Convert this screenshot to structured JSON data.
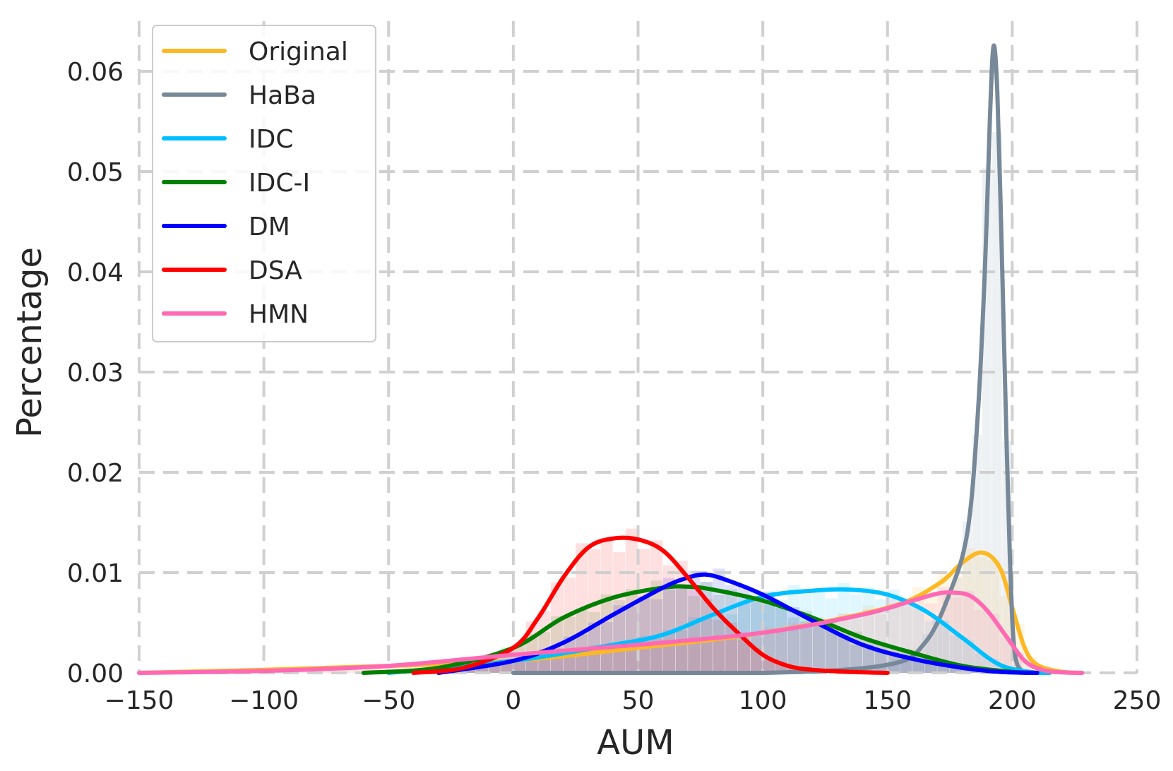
{
  "chart_data": {
    "type": "area",
    "xlabel": "AUM",
    "ylabel": "Percentage",
    "xlim": [
      -150,
      250
    ],
    "ylim": [
      0,
      0.065
    ],
    "x_ticks": [
      -150,
      -100,
      -50,
      0,
      50,
      100,
      150,
      200,
      250
    ],
    "x_tick_labels": [
      "−150",
      "−100",
      "−50",
      "0",
      "50",
      "100",
      "150",
      "200",
      "250"
    ],
    "y_ticks": [
      0,
      0.01,
      0.02,
      0.03,
      0.04,
      0.05,
      0.06
    ],
    "y_tick_labels": [
      "0.00",
      "0.01",
      "0.02",
      "0.03",
      "0.04",
      "0.05",
      "0.06"
    ],
    "grid": true,
    "legend_position": "top-left",
    "series": [
      {
        "name": "Original",
        "color": "#FDB924",
        "x": [
          -150,
          -100,
          -50,
          0,
          50,
          100,
          150,
          170,
          180,
          188,
          195,
          200,
          205,
          210,
          220,
          228
        ],
        "y": [
          0.0,
          0.0003,
          0.0007,
          0.0012,
          0.0025,
          0.004,
          0.0065,
          0.0088,
          0.011,
          0.012,
          0.0105,
          0.0065,
          0.0025,
          0.0008,
          0.0001,
          0.0
        ]
      },
      {
        "name": "HaBa",
        "color": "#778899",
        "x": [
          0,
          100,
          150,
          165,
          175,
          182,
          186,
          189,
          191,
          192.5,
          194,
          195.5,
          197,
          199,
          201,
          205
        ],
        "y": [
          0.0,
          0.0,
          0.0008,
          0.003,
          0.008,
          0.014,
          0.025,
          0.04,
          0.055,
          0.0625,
          0.058,
          0.045,
          0.03,
          0.012,
          0.002,
          0.0
        ]
      },
      {
        "name": "IDC",
        "color": "#00BFFF",
        "x": [
          -50,
          0,
          40,
          60,
          80,
          100,
          120,
          135,
          150,
          165,
          180,
          195,
          210,
          215
        ],
        "y": [
          0.0,
          0.0012,
          0.0028,
          0.0038,
          0.0058,
          0.0076,
          0.0082,
          0.0083,
          0.0078,
          0.0062,
          0.0035,
          0.0008,
          0.0,
          0.0
        ]
      },
      {
        "name": "IDC-I",
        "color": "#008000",
        "x": [
          -60,
          -30,
          0,
          20,
          40,
          60,
          70,
          80,
          100,
          120,
          140,
          160,
          180,
          200,
          210
        ],
        "y": [
          0.0,
          0.0005,
          0.0025,
          0.0055,
          0.0075,
          0.0085,
          0.0086,
          0.0083,
          0.0072,
          0.0055,
          0.0035,
          0.002,
          0.0007,
          0.0001,
          0.0
        ]
      },
      {
        "name": "DM",
        "color": "#0000FF",
        "x": [
          -30,
          0,
          20,
          40,
          60,
          70,
          77,
          85,
          100,
          120,
          140,
          160,
          180,
          195,
          210
        ],
        "y": [
          0.0,
          0.0012,
          0.003,
          0.0058,
          0.0085,
          0.0095,
          0.0098,
          0.0093,
          0.0078,
          0.0052,
          0.0028,
          0.0014,
          0.0005,
          0.0001,
          0.0
        ]
      },
      {
        "name": "DSA",
        "color": "#FF0000",
        "x": [
          -40,
          -20,
          0,
          10,
          20,
          30,
          40,
          50,
          60,
          70,
          80,
          90,
          100,
          110,
          120,
          135,
          150
        ],
        "y": [
          0.0,
          0.0005,
          0.0025,
          0.0055,
          0.0095,
          0.0125,
          0.0134,
          0.0133,
          0.0122,
          0.0095,
          0.0065,
          0.004,
          0.0018,
          0.0007,
          0.0003,
          0.0001,
          0.0
        ]
      },
      {
        "name": "HMN",
        "color": "#FF69B4",
        "x": [
          -150,
          -100,
          -50,
          0,
          50,
          100,
          140,
          160,
          170,
          176,
          183,
          190,
          198,
          205,
          212,
          220,
          228
        ],
        "y": [
          0.0,
          0.0002,
          0.0007,
          0.0018,
          0.0028,
          0.004,
          0.0058,
          0.0072,
          0.0079,
          0.008,
          0.0077,
          0.0062,
          0.0035,
          0.0012,
          0.0003,
          5e-05,
          0.0
        ]
      }
    ]
  }
}
